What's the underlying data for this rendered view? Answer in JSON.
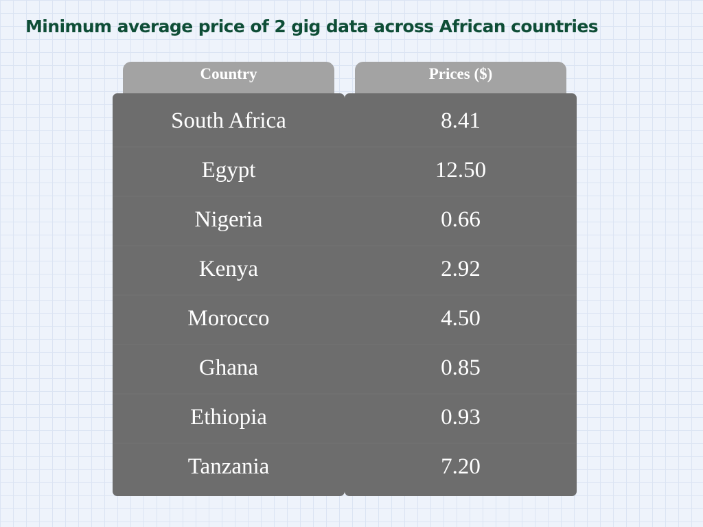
{
  "title": "Minimum average price of 2 gig data across African countries",
  "chart_data": {
    "type": "table",
    "title": "Minimum average price of 2 gig data across African countries",
    "columns": [
      "Country",
      "Prices ($)"
    ],
    "rows": [
      [
        "South Africa",
        "8.41"
      ],
      [
        "Egypt",
        "12.50"
      ],
      [
        "Nigeria",
        "0.66"
      ],
      [
        "Kenya",
        "2.92"
      ],
      [
        "Morocco",
        "4.50"
      ],
      [
        "Ghana",
        "0.85"
      ],
      [
        "Ethiopia",
        "0.93"
      ],
      [
        "Tanzania",
        "7.20"
      ]
    ]
  },
  "colors": {
    "title": "#0e4d36",
    "header_bg": "#a3a3a3",
    "cell_bg": "#6d6d6d",
    "text": "#ffffff"
  }
}
